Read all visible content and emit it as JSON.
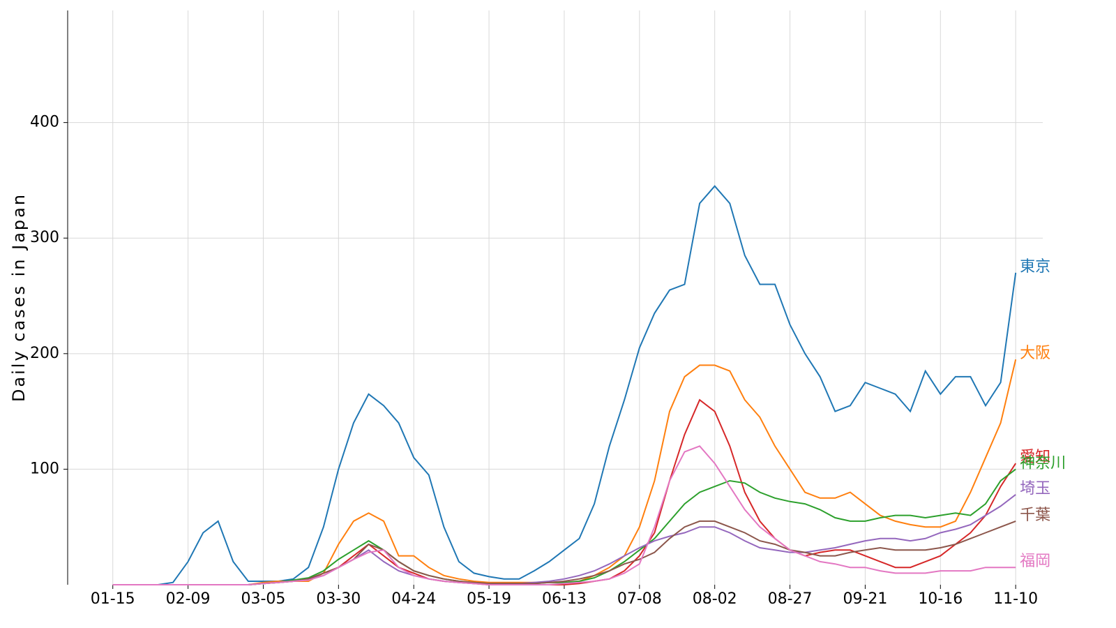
{
  "chart_data": {
    "type": "line",
    "y_label": "Daily cases in Japan",
    "x": [
      0,
      5,
      10,
      15,
      20,
      25,
      30,
      35,
      40,
      45,
      50,
      55,
      60,
      65,
      70,
      75,
      80,
      85,
      90,
      95,
      100,
      105,
      110,
      115,
      120,
      125,
      130,
      135,
      140,
      145,
      150,
      155,
      160,
      165,
      170,
      175,
      180,
      185,
      190,
      195,
      200,
      205,
      210,
      215,
      220,
      225,
      230,
      235,
      240,
      245,
      250,
      255,
      260,
      265,
      270,
      275,
      280,
      285,
      290,
      295,
      300
    ],
    "xlim": [
      -15,
      309
    ],
    "xticks": [
      {
        "value": 0,
        "label": "01-15"
      },
      {
        "value": 25,
        "label": "02-09"
      },
      {
        "value": 50,
        "label": "03-05"
      },
      {
        "value": 75,
        "label": "03-30"
      },
      {
        "value": 100,
        "label": "04-24"
      },
      {
        "value": 125,
        "label": "05-19"
      },
      {
        "value": 150,
        "label": "06-13"
      },
      {
        "value": 175,
        "label": "07-08"
      },
      {
        "value": 200,
        "label": "08-02"
      },
      {
        "value": 225,
        "label": "08-27"
      },
      {
        "value": 250,
        "label": "09-21"
      },
      {
        "value": 275,
        "label": "10-16"
      },
      {
        "value": 300,
        "label": "11-10"
      }
    ],
    "ylim": [
      0,
      497
    ],
    "yticks": [
      100,
      200,
      300,
      400
    ],
    "grid": true,
    "series": [
      {
        "name": "東京",
        "color": "#1f77b4",
        "values": [
          0,
          0,
          0,
          0,
          2,
          20,
          45,
          55,
          20,
          3,
          3,
          3,
          5,
          15,
          50,
          100,
          140,
          165,
          155,
          140,
          110,
          95,
          50,
          20,
          10,
          7,
          5,
          5,
          12,
          20,
          30,
          40,
          70,
          120,
          160,
          205,
          235,
          255,
          260,
          330,
          345,
          330,
          285,
          260,
          260,
          225,
          200,
          180,
          150,
          155,
          175,
          170,
          165,
          150,
          185,
          165,
          180,
          180,
          155,
          175,
          270
        ]
      },
      {
        "name": "大阪",
        "color": "#ff7f0e",
        "values": [
          0,
          0,
          0,
          0,
          0,
          0,
          0,
          0,
          0,
          0,
          2,
          3,
          3,
          3,
          10,
          35,
          55,
          62,
          55,
          25,
          25,
          15,
          8,
          5,
          3,
          2,
          2,
          2,
          2,
          2,
          2,
          3,
          8,
          15,
          25,
          50,
          90,
          150,
          180,
          190,
          190,
          185,
          160,
          145,
          120,
          100,
          80,
          75,
          75,
          80,
          70,
          60,
          55,
          52,
          50,
          50,
          55,
          80,
          110,
          140,
          195
        ]
      },
      {
        "name": "愛知",
        "color": "#d62728",
        "values": [
          0,
          0,
          0,
          0,
          0,
          0,
          0,
          0,
          0,
          0,
          1,
          2,
          3,
          5,
          10,
          15,
          25,
          35,
          25,
          15,
          10,
          5,
          3,
          2,
          1,
          0,
          0,
          0,
          0,
          0,
          0,
          1,
          3,
          5,
          12,
          25,
          45,
          90,
          130,
          160,
          150,
          120,
          80,
          55,
          40,
          30,
          25,
          28,
          30,
          30,
          25,
          20,
          15,
          15,
          20,
          25,
          35,
          45,
          60,
          85,
          105
        ]
      },
      {
        "name": "神奈川",
        "color": "#2ca02c",
        "values": [
          0,
          0,
          0,
          0,
          0,
          0,
          0,
          0,
          0,
          0,
          1,
          2,
          4,
          6,
          12,
          22,
          30,
          38,
          30,
          20,
          12,
          8,
          5,
          3,
          2,
          1,
          1,
          1,
          1,
          2,
          2,
          3,
          6,
          12,
          20,
          30,
          40,
          55,
          70,
          80,
          85,
          90,
          88,
          80,
          75,
          72,
          70,
          65,
          58,
          55,
          55,
          58,
          60,
          60,
          58,
          60,
          62,
          60,
          70,
          90,
          100
        ]
      },
      {
        "name": "埼玉",
        "color": "#9467bd",
        "values": [
          0,
          0,
          0,
          0,
          0,
          0,
          0,
          0,
          0,
          0,
          1,
          2,
          3,
          5,
          8,
          15,
          22,
          30,
          20,
          12,
          8,
          5,
          3,
          2,
          1,
          1,
          1,
          1,
          2,
          3,
          5,
          8,
          12,
          18,
          25,
          32,
          38,
          42,
          45,
          50,
          50,
          45,
          38,
          32,
          30,
          28,
          28,
          30,
          32,
          35,
          38,
          40,
          40,
          38,
          40,
          45,
          48,
          52,
          60,
          68,
          78
        ]
      },
      {
        "name": "千葉",
        "color": "#8c564b",
        "values": [
          0,
          0,
          0,
          0,
          0,
          0,
          0,
          0,
          0,
          0,
          1,
          2,
          3,
          5,
          10,
          15,
          22,
          35,
          30,
          20,
          12,
          8,
          5,
          3,
          2,
          1,
          1,
          1,
          1,
          2,
          3,
          5,
          8,
          12,
          18,
          22,
          28,
          40,
          50,
          55,
          55,
          50,
          45,
          38,
          35,
          30,
          28,
          25,
          25,
          28,
          30,
          32,
          30,
          30,
          30,
          32,
          35,
          40,
          45,
          50,
          55
        ]
      },
      {
        "name": "福岡",
        "color": "#e377c2",
        "values": [
          0,
          0,
          0,
          0,
          0,
          0,
          0,
          0,
          0,
          0,
          1,
          2,
          3,
          4,
          8,
          15,
          22,
          28,
          30,
          15,
          8,
          5,
          3,
          2,
          1,
          0,
          0,
          0,
          0,
          0,
          1,
          2,
          3,
          5,
          10,
          18,
          50,
          90,
          115,
          120,
          105,
          85,
          65,
          50,
          40,
          30,
          25,
          20,
          18,
          15,
          15,
          12,
          10,
          10,
          10,
          12,
          12,
          12,
          15,
          15,
          15
        ]
      }
    ]
  }
}
